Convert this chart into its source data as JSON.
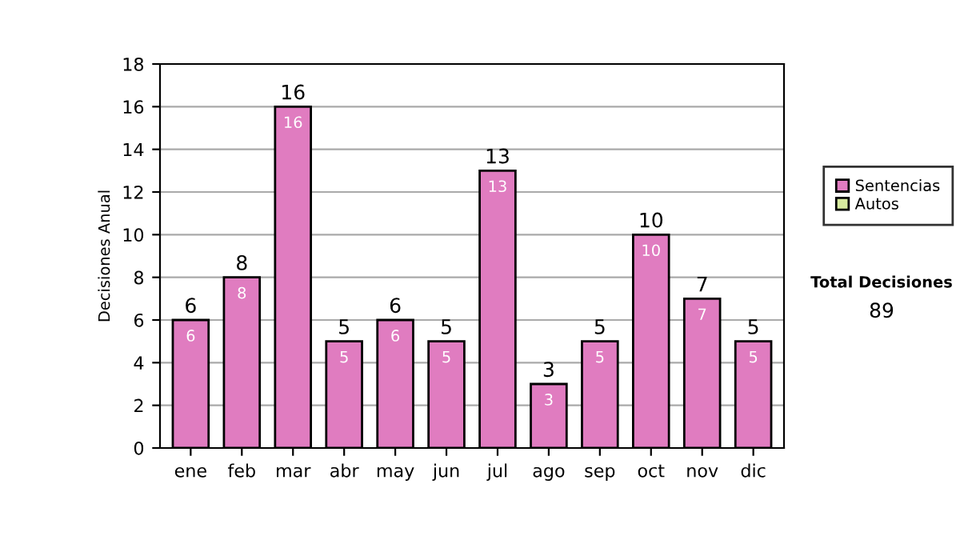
{
  "chart_data": {
    "type": "bar",
    "ylabel": "Decisiones Anual",
    "categories": [
      "ene",
      "feb",
      "mar",
      "abr",
      "may",
      "jun",
      "jul",
      "ago",
      "sep",
      "oct",
      "nov",
      "dic"
    ],
    "series": [
      {
        "name": "Sentencias",
        "color": "#e07cc0",
        "values": [
          6,
          8,
          16,
          5,
          6,
          5,
          13,
          3,
          5,
          10,
          7,
          5
        ],
        "value_labels": [
          "6",
          "8",
          "16",
          "5",
          "6",
          "5",
          "13",
          "3",
          "5",
          "10",
          "7",
          "5"
        ]
      },
      {
        "name": "Autos",
        "color": "#d8eca0",
        "values": [
          null,
          null,
          null,
          null,
          null,
          null,
          null,
          null,
          null,
          null,
          null,
          null
        ]
      }
    ],
    "stacked": true,
    "totals": [
      "6",
      "8",
      "16",
      "5",
      "6",
      "5",
      "13",
      "3",
      "5",
      "10",
      "7",
      "5"
    ],
    "ylim": [
      0,
      18
    ],
    "yticks": [
      0,
      2,
      4,
      6,
      8,
      10,
      12,
      14,
      16,
      18
    ],
    "grid": "y",
    "legend": "right",
    "annotations": [
      "Total Decisiones",
      "89"
    ]
  }
}
